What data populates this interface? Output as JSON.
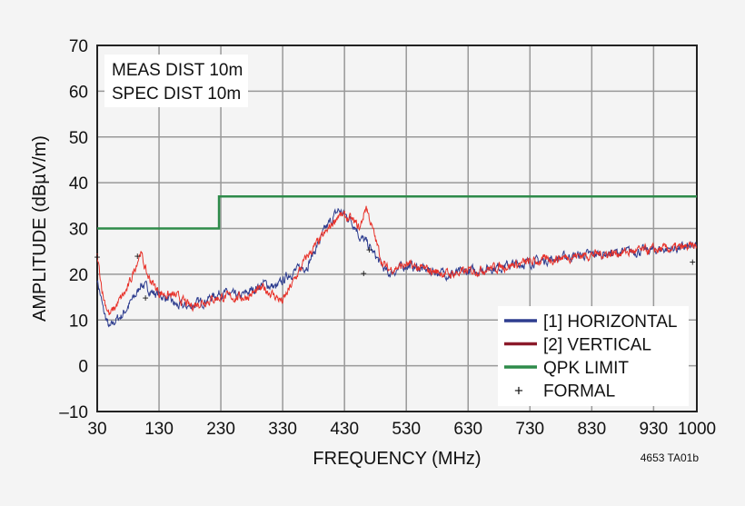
{
  "chart_data": {
    "type": "line",
    "xlabel": "FREQUENCY (MHz)",
    "ylabel": "AMPLITUDE (dBµV/m)",
    "xlim": [
      30,
      1000
    ],
    "ylim": [
      -10,
      70
    ],
    "xticks": [
      "30",
      "130",
      "230",
      "330",
      "430",
      "530",
      "630",
      "730",
      "830",
      "930",
      "1000"
    ],
    "xtick_values": [
      30,
      130,
      230,
      330,
      430,
      530,
      630,
      730,
      830,
      930,
      1000
    ],
    "yticks": [
      "70",
      "60",
      "50",
      "40",
      "30",
      "20",
      "10",
      "0",
      "–10"
    ],
    "ytick_values": [
      70,
      60,
      50,
      40,
      30,
      20,
      10,
      0,
      -10
    ],
    "grid": true,
    "annotation": [
      "MEAS DIST 10m",
      "SPEC DIST 10m"
    ],
    "figure_id": "4653 TA01b",
    "legend_position": "bottom-right",
    "series": [
      {
        "name": "[1] HORIZONTAL",
        "color": "#2e3d8f",
        "x": [
          30,
          40,
          50,
          60,
          70,
          80,
          95,
          100,
          120,
          140,
          160,
          180,
          200,
          230,
          260,
          300,
          320,
          340,
          370,
          400,
          420,
          440,
          450,
          455,
          465,
          480,
          500,
          530,
          560,
          600,
          700,
          800,
          900,
          1000
        ],
        "y": [
          19,
          12,
          8,
          10,
          11,
          13,
          16,
          18,
          16,
          15,
          13,
          13,
          14,
          16,
          15,
          18,
          17,
          20,
          22,
          30,
          34,
          32,
          30,
          28,
          27,
          24,
          20,
          22,
          21,
          20,
          22,
          24,
          25,
          26
        ]
      },
      {
        "name": "[2] VERTICAL",
        "color": "#e8322a",
        "legend_color": "#8b1a2a",
        "x": [
          30,
          40,
          50,
          60,
          80,
          100,
          110,
          130,
          160,
          180,
          200,
          230,
          270,
          300,
          330,
          350,
          370,
          400,
          420,
          440,
          455,
          465,
          475,
          490,
          500,
          530,
          560,
          600,
          700,
          800,
          900,
          1000
        ],
        "y": [
          24,
          15,
          11,
          13,
          17,
          25,
          20,
          16,
          15,
          13,
          14,
          15,
          15,
          17,
          14,
          19,
          24,
          29,
          33,
          32,
          30,
          35,
          30,
          23,
          21,
          22,
          21,
          20,
          22,
          24,
          25,
          26
        ]
      },
      {
        "name": "QPK LIMIT",
        "color": "#2e8b4a",
        "x": [
          30,
          227,
          227,
          1000
        ],
        "y": [
          30,
          30,
          37,
          37
        ]
      },
      {
        "name": "FORMAL",
        "marker": "+",
        "x": [
          30,
          95,
          108,
          461,
          470,
          993
        ],
        "y": [
          23.7,
          23.9,
          14.8,
          20.2,
          25.3,
          22.7
        ]
      }
    ]
  }
}
